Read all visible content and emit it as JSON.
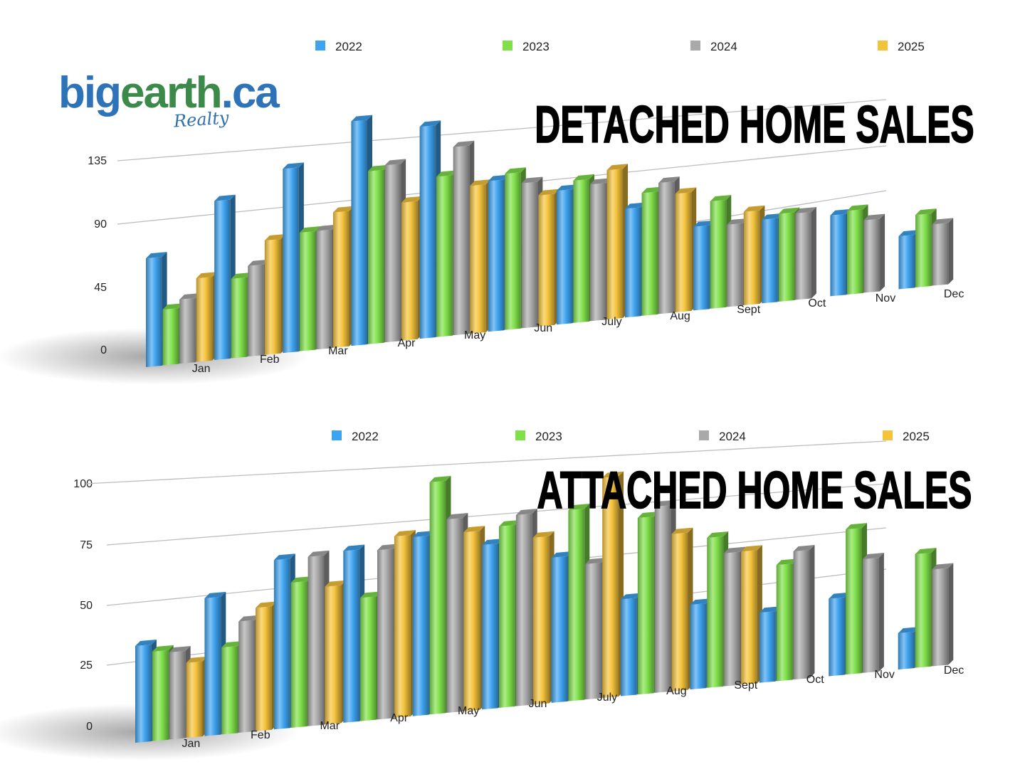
{
  "logo": {
    "part_a": "big",
    "part_b": "earth",
    "part_c": ".ca",
    "subtitle": "Realty"
  },
  "colors": {
    "2022": "#3ea3f0",
    "2023": "#7fe04a",
    "2024": "#a9a9a9",
    "2025": "#f5c33b"
  },
  "chart_data": [
    {
      "type": "bar",
      "title": "DETACHED HOME SALES",
      "categories": [
        "Jan",
        "Feb",
        "Mar",
        "Apr",
        "May",
        "Jun",
        "July",
        "Aug",
        "Sept",
        "Oct",
        "Nov",
        "Dec"
      ],
      "yticks": [
        "0",
        "45",
        "90",
        "135"
      ],
      "ylim": [
        0,
        170
      ],
      "legend_position": "top",
      "series": [
        {
          "name": "2022",
          "values": [
            78,
            114,
            132,
            161,
            152,
            108,
            96,
            78,
            60,
            60,
            58,
            38
          ]
        },
        {
          "name": "2023",
          "values": [
            40,
            57,
            85,
            124,
            115,
            112,
            102,
            88,
            77,
            63,
            60,
            52
          ]
        },
        {
          "name": "2024",
          "values": [
            46,
            65,
            85,
            127,
            135,
            104,
            98,
            94,
            59,
            62,
            52,
            44
          ]
        },
        {
          "name": "2025",
          "values": [
            60,
            82,
            97,
            99,
            106,
            94,
            107,
            85,
            67,
            null,
            null,
            null
          ]
        }
      ]
    },
    {
      "type": "bar",
      "title": "ATTACHED HOME SALES",
      "categories": [
        "Jan",
        "Feb",
        "Mar",
        "Apr",
        "May",
        "Jun",
        "July",
        "Aug",
        "Sept",
        "Oct",
        "Nov",
        "Dec"
      ],
      "yticks": [
        "0",
        "25",
        "50",
        "75",
        "100"
      ],
      "ylim": [
        0,
        100
      ],
      "legend_position": "top",
      "series": [
        {
          "name": "2022",
          "values": [
            40,
            57,
            70,
            71,
            74,
            68,
            60,
            40,
            35,
            29,
            32,
            15
          ]
        },
        {
          "name": "2023",
          "values": [
            37,
            36,
            60,
            51,
            96,
            75,
            79,
            73,
            62,
            48,
            60,
            47
          ]
        },
        {
          "name": "2024",
          "values": [
            36,
            46,
            70,
            70,
            80,
            79,
            56,
            77,
            55,
            53,
            47,
            40
          ]
        },
        {
          "name": "2025",
          "values": [
            31,
            51,
            57,
            75,
            74,
            69,
            91,
            65,
            55,
            null,
            null,
            null
          ]
        }
      ]
    }
  ]
}
